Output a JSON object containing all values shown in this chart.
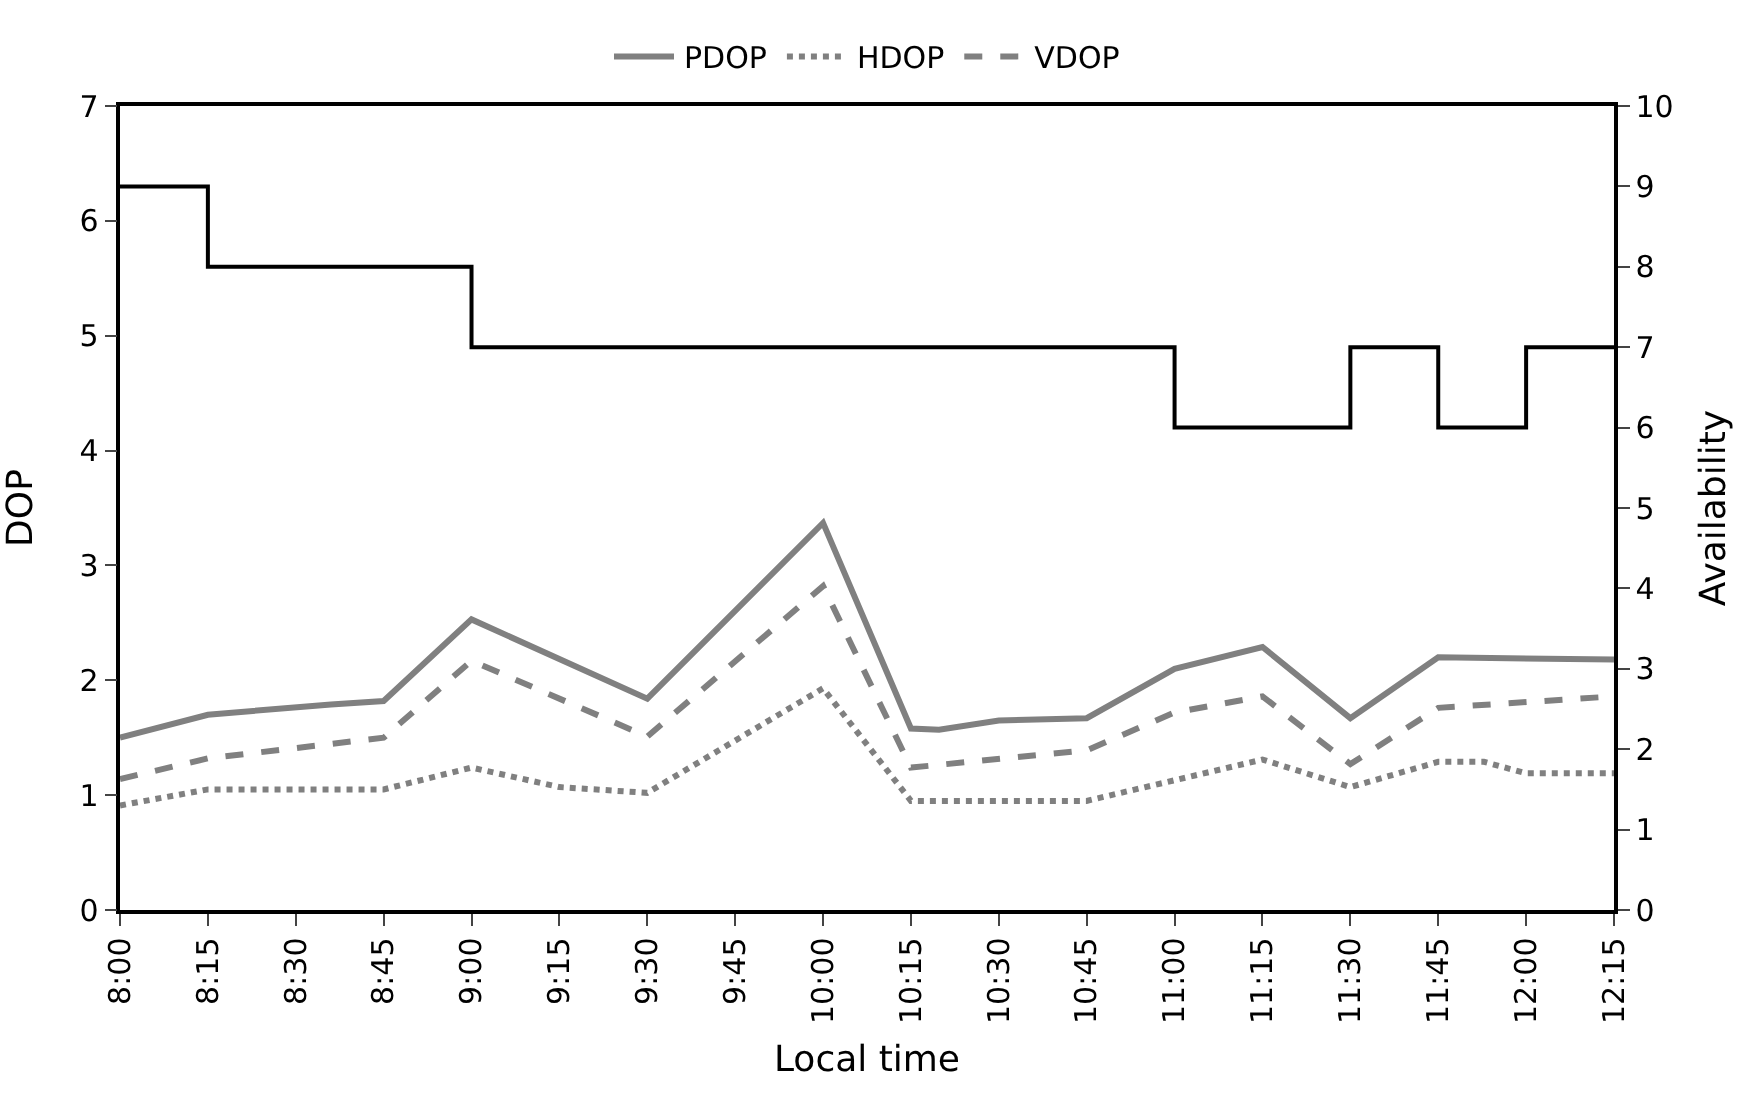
{
  "chart_data": {
    "type": "line",
    "xlabel": "Local time",
    "ylabel": "DOP",
    "y2label": "Availability",
    "xlim": [
      8,
      12.25
    ],
    "xticks": [
      {
        "value": 8,
        "label": "8:00"
      },
      {
        "value": 8.25,
        "label": "8:15"
      },
      {
        "value": 8.5,
        "label": "8:30"
      },
      {
        "value": 8.75,
        "label": "8:45"
      },
      {
        "value": 9,
        "label": "9:00"
      },
      {
        "value": 9.25,
        "label": "9:15"
      },
      {
        "value": 9.5,
        "label": "9:30"
      },
      {
        "value": 9.75,
        "label": "9:45"
      },
      {
        "value": 10,
        "label": "10:00"
      },
      {
        "value": 10.25,
        "label": "10:15"
      },
      {
        "value": 10.5,
        "label": "10:30"
      },
      {
        "value": 10.75,
        "label": "10:45"
      },
      {
        "value": 11,
        "label": "11:00"
      },
      {
        "value": 11.25,
        "label": "11:15"
      },
      {
        "value": 11.5,
        "label": "11:30"
      },
      {
        "value": 11.75,
        "label": "11:45"
      },
      {
        "value": 12,
        "label": "12:00"
      },
      {
        "value": 12.25,
        "label": "12:15"
      }
    ],
    "ylim": [
      0,
      7
    ],
    "yticks": [
      0,
      1,
      2,
      3,
      4,
      5,
      6,
      7
    ],
    "y2lim": [
      0,
      10
    ],
    "y2ticks": [
      0,
      1,
      2,
      3,
      4,
      5,
      6,
      7,
      8,
      9,
      10
    ],
    "grid": false,
    "legend": "top",
    "marker": "none",
    "series": [
      {
        "name": "PDOP",
        "color": "#808080",
        "line_style": "solid",
        "x": [
          8,
          8.25,
          8.6,
          8.75,
          9,
          9.5,
          10,
          10.25,
          10.33,
          10.5,
          10.75,
          11,
          11.25,
          11.5,
          11.75,
          12.25
        ],
        "values": [
          1.5,
          1.7,
          1.79,
          1.82,
          2.53,
          1.84,
          3.37,
          1.58,
          1.57,
          1.65,
          1.67,
          2.1,
          2.29,
          1.67,
          2.2,
          2.18
        ]
      },
      {
        "name": "HDOP",
        "color": "#808080",
        "line_style": "dotted",
        "x": [
          8,
          8.25,
          8.75,
          9,
          9.25,
          9.5,
          10,
          10.25,
          10.75,
          11.25,
          11.5,
          11.75,
          11.88,
          12,
          12.25
        ],
        "values": [
          0.91,
          1.05,
          1.05,
          1.24,
          1.07,
          1.02,
          1.93,
          0.95,
          0.95,
          1.31,
          1.07,
          1.29,
          1.29,
          1.19,
          1.19
        ]
      },
      {
        "name": "VDOP",
        "color": "#808080",
        "line_style": "dashed",
        "x": [
          8,
          8.25,
          8.75,
          9,
          9.5,
          10,
          10.25,
          10.75,
          11,
          11.25,
          11.5,
          11.75,
          12.25
        ],
        "values": [
          1.14,
          1.32,
          1.5,
          2.17,
          1.51,
          2.82,
          1.24,
          1.39,
          1.72,
          1.86,
          1.27,
          1.76,
          1.86
        ]
      },
      {
        "type": "step",
        "axis": "y2",
        "color": "#000000",
        "line_style": "solid",
        "x": [
          8,
          8.25,
          9,
          11,
          11.5,
          11.75,
          12,
          12.25
        ],
        "values": [
          9,
          8,
          7,
          6,
          7,
          6,
          7,
          7
        ]
      }
    ]
  }
}
